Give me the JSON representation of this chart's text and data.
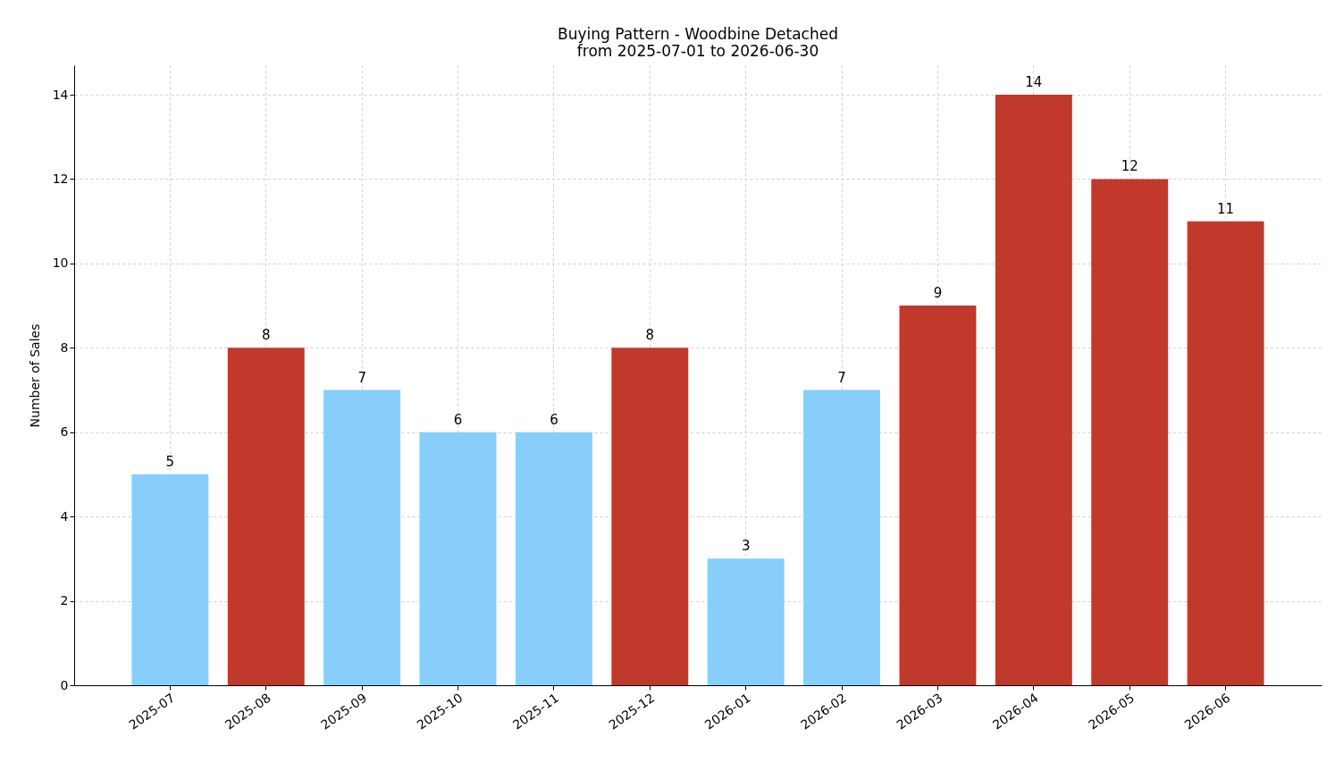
{
  "chart_data": {
    "type": "bar",
    "title": "Buying Pattern - Woodbine Detached",
    "subtitle": "from 2025-07-01 to 2026-06-30",
    "ylabel": "Number of Sales",
    "categories": [
      "2025-07",
      "2025-08",
      "2025-09",
      "2025-10",
      "2025-11",
      "2025-12",
      "2026-01",
      "2026-02",
      "2026-03",
      "2026-04",
      "2026-05",
      "2026-06"
    ],
    "values": [
      5,
      8,
      7,
      6,
      6,
      8,
      3,
      7,
      9,
      14,
      12,
      11
    ],
    "colors": [
      "#87cefa",
      "#c0392b",
      "#87cefa",
      "#87cefa",
      "#87cefa",
      "#c0392b",
      "#87cefa",
      "#87cefa",
      "#c0392b",
      "#c0392b",
      "#c0392b",
      "#c0392b"
    ],
    "ylim": [
      0,
      14.7
    ],
    "yticks": [
      0,
      2,
      4,
      6,
      8,
      10,
      12,
      14
    ],
    "grid": true,
    "data_labels": true
  }
}
